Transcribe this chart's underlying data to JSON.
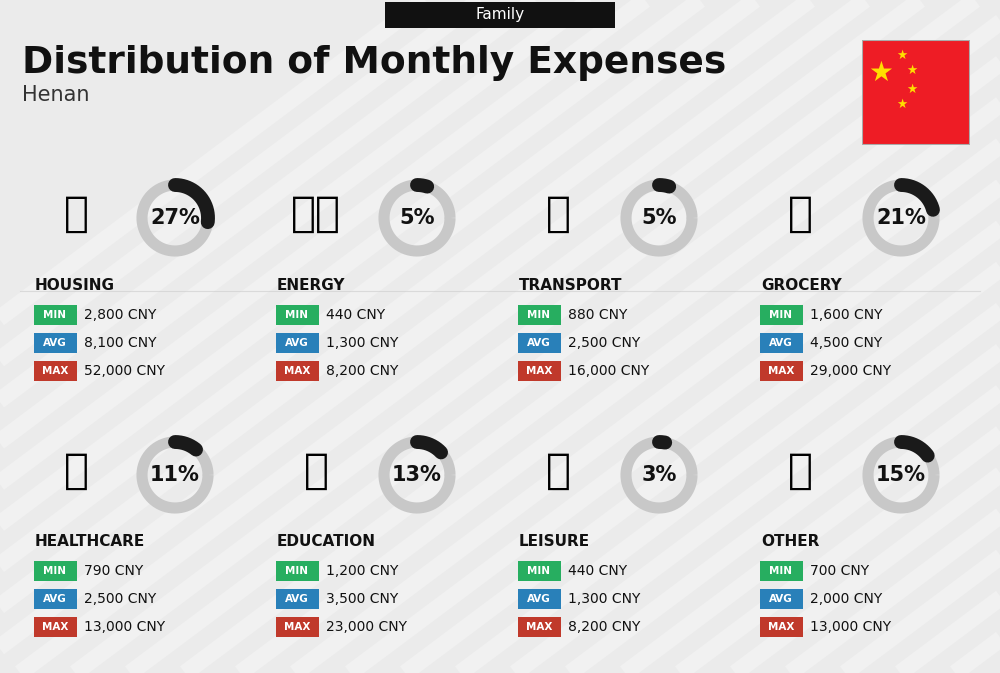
{
  "title": "Distribution of Monthly Expenses",
  "subtitle": "Henan",
  "family_label": "Family",
  "bg_color": "#ebebeb",
  "categories": [
    {
      "name": "HOUSING",
      "pct": 27,
      "min": "2,800 CNY",
      "avg": "8,100 CNY",
      "max": "52,000 CNY",
      "row": 0,
      "col": 0
    },
    {
      "name": "ENERGY",
      "pct": 5,
      "min": "440 CNY",
      "avg": "1,300 CNY",
      "max": "8,200 CNY",
      "row": 0,
      "col": 1
    },
    {
      "name": "TRANSPORT",
      "pct": 5,
      "min": "880 CNY",
      "avg": "2,500 CNY",
      "max": "16,000 CNY",
      "row": 0,
      "col": 2
    },
    {
      "name": "GROCERY",
      "pct": 21,
      "min": "1,600 CNY",
      "avg": "4,500 CNY",
      "max": "29,000 CNY",
      "row": 0,
      "col": 3
    },
    {
      "name": "HEALTHCARE",
      "pct": 11,
      "min": "790 CNY",
      "avg": "2,500 CNY",
      "max": "13,000 CNY",
      "row": 1,
      "col": 0
    },
    {
      "name": "EDUCATION",
      "pct": 13,
      "min": "1,200 CNY",
      "avg": "3,500 CNY",
      "max": "23,000 CNY",
      "row": 1,
      "col": 1
    },
    {
      "name": "LEISURE",
      "pct": 3,
      "min": "440 CNY",
      "avg": "1,300 CNY",
      "max": "8,200 CNY",
      "row": 1,
      "col": 2
    },
    {
      "name": "OTHER",
      "pct": 15,
      "min": "700 CNY",
      "avg": "2,000 CNY",
      "max": "13,000 CNY",
      "row": 1,
      "col": 3
    }
  ],
  "min_color": "#27ae60",
  "avg_color": "#2980b9",
  "max_color": "#c0392b",
  "donut_filled": "#1a1a1a",
  "donut_empty": "#c8c8c8",
  "stripe_color": "#ffffff",
  "stripe_alpha": 0.3,
  "flag_red": "#EE1C25",
  "flag_star": "#FFDE00",
  "header_bg": "#111111",
  "header_text": "#ffffff",
  "title_color": "#111111",
  "subtitle_color": "#333333",
  "name_color": "#111111",
  "value_color": "#111111"
}
